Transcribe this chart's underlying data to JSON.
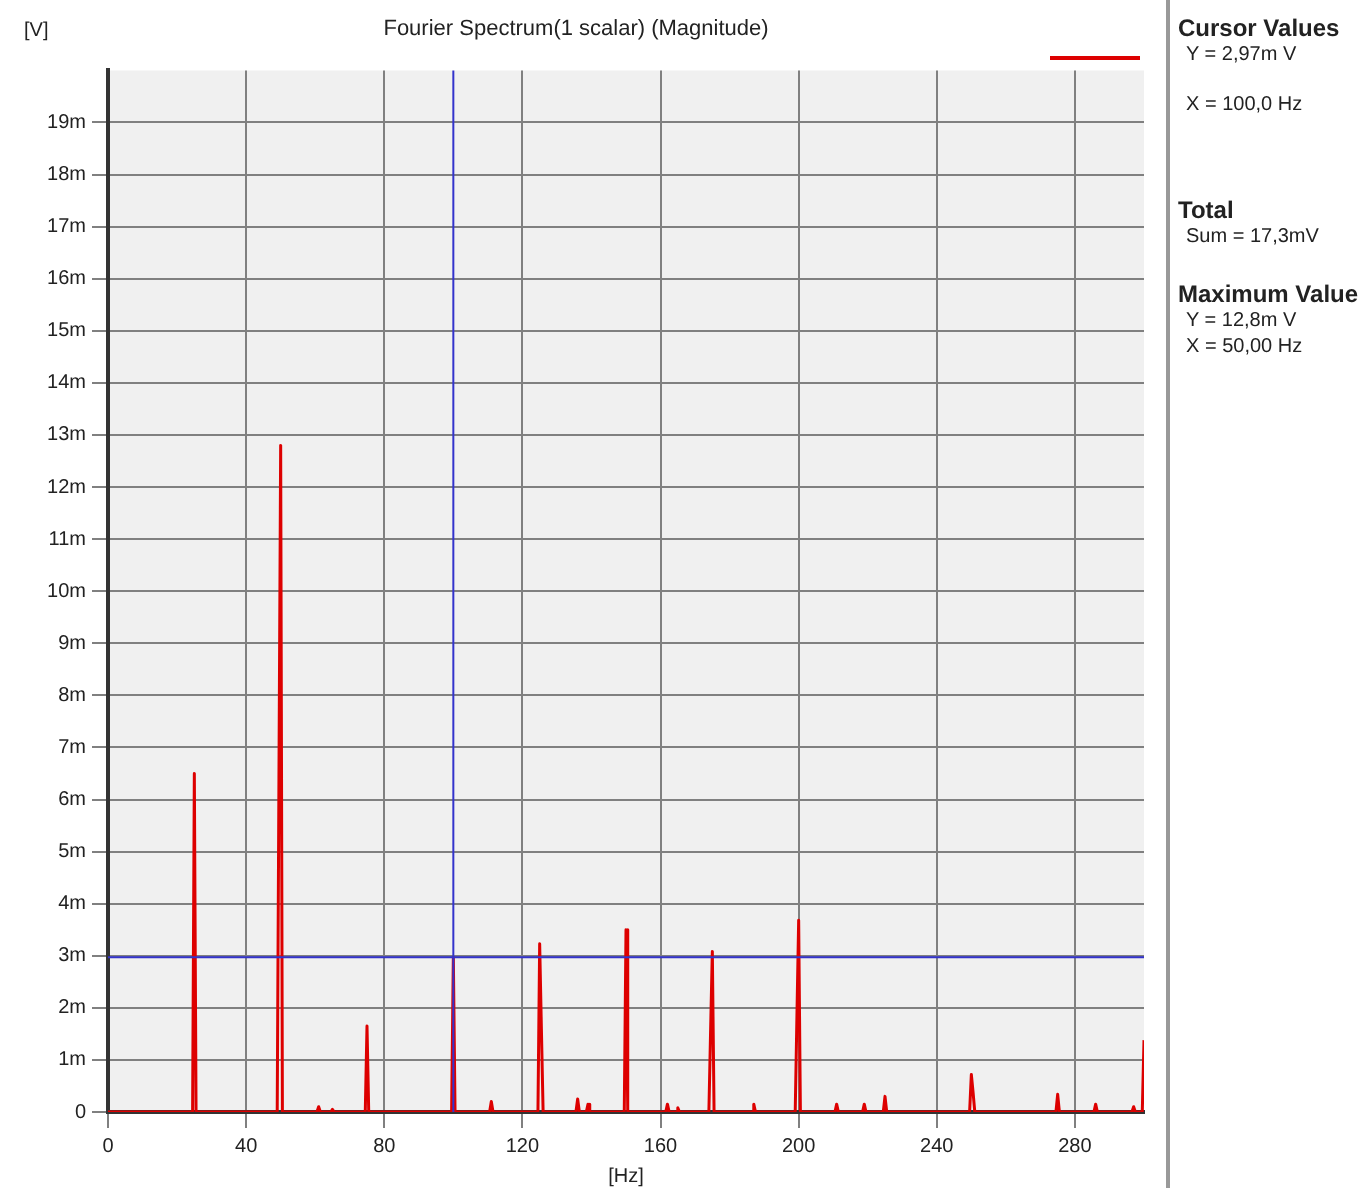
{
  "chart_data": {
    "type": "line",
    "title": "Fourier Spectrum(1 scalar) (Magnitude)",
    "xlabel": "[Hz]",
    "ylabel": "[V]",
    "series": [
      {
        "color": "#dd0000",
        "x": [
          0,
          24.5,
          25,
          25.5,
          49,
          49.5,
          50,
          50.5,
          60.5,
          61,
          61.5,
          64.5,
          65,
          65.5,
          74.5,
          75,
          75.5,
          99.5,
          100,
          100.5,
          110.5,
          111,
          111.5,
          124.5,
          125,
          125.5,
          126,
          135.5,
          136,
          136.5,
          138.5,
          139,
          139.5,
          149.5,
          150,
          150.5,
          161.5,
          162,
          162.5,
          164.5,
          165,
          165.5,
          174,
          174.5,
          175,
          175.5,
          186.5,
          187,
          187.5,
          199,
          199.5,
          200,
          200.5,
          210.5,
          211,
          211.5,
          218.5,
          219,
          219.5,
          224.5,
          225,
          225.5,
          249.5,
          250,
          250.5,
          251,
          274.5,
          275,
          275.5,
          285.5,
          286,
          286.5,
          296.5,
          297,
          297.5,
          299.5,
          300
        ],
        "values": [
          0,
          0,
          6.5,
          0,
          0,
          6.4,
          12.8,
          0,
          0,
          0.1,
          0,
          0,
          0.05,
          0,
          0,
          1.65,
          0,
          0,
          2.97,
          0,
          0,
          0.2,
          0,
          0,
          3.23,
          1.6,
          0,
          0,
          0.25,
          0,
          0,
          0.15,
          0,
          0,
          3.5,
          0,
          0,
          0.15,
          0,
          0,
          0.08,
          0,
          0,
          1.57,
          3.08,
          0,
          0,
          0.15,
          0,
          0,
          1.85,
          3.68,
          0,
          0,
          0.15,
          0,
          0,
          0.15,
          0,
          0,
          0.3,
          0,
          0,
          0.72,
          0.38,
          0,
          0,
          0.34,
          0,
          0,
          0.15,
          0,
          0,
          0.1,
          0,
          0,
          1.38
        ]
      }
    ],
    "xlim": [
      0,
      300
    ],
    "xticks": [
      0,
      40,
      80,
      120,
      160,
      200,
      240,
      280
    ],
    "ylim": [
      0,
      20
    ],
    "yticks": [
      0,
      {
        "value": 1,
        "label": "1m"
      },
      {
        "value": 2,
        "label": "2m"
      },
      {
        "value": 3,
        "label": "3m"
      },
      {
        "value": 4,
        "label": "4m"
      },
      {
        "value": 5,
        "label": "5m"
      },
      {
        "value": 6,
        "label": "6m"
      },
      {
        "value": 7,
        "label": "7m"
      },
      {
        "value": 8,
        "label": "8m"
      },
      {
        "value": 9,
        "label": "9m"
      },
      {
        "value": 10,
        "label": "10m"
      },
      {
        "value": 11,
        "label": "11m"
      },
      {
        "value": 12,
        "label": "12m"
      },
      {
        "value": 13,
        "label": "13m"
      },
      {
        "value": 14,
        "label": "14m"
      },
      {
        "value": 15,
        "label": "15m"
      },
      {
        "value": 16,
        "label": "16m"
      },
      {
        "value": 17,
        "label": "17m"
      },
      {
        "value": 18,
        "label": "18m"
      },
      {
        "value": 19,
        "label": "19m"
      }
    ],
    "ref_lines": [
      {
        "axis": "x",
        "value": 100,
        "color": "#3333cc"
      },
      {
        "axis": "y",
        "value": 2.97,
        "color": "#3333cc"
      }
    ],
    "grid": true,
    "legend": false,
    "marker": "none",
    "line_style": "solid",
    "annotations": [
      "Cursor Values",
      "Y = 2,97m V",
      "X = 100,0 Hz",
      "Total",
      "Sum = 17,3mV",
      "Maximum Value",
      "Y = 12,8m V",
      "X = 50,00 Hz"
    ]
  }
}
